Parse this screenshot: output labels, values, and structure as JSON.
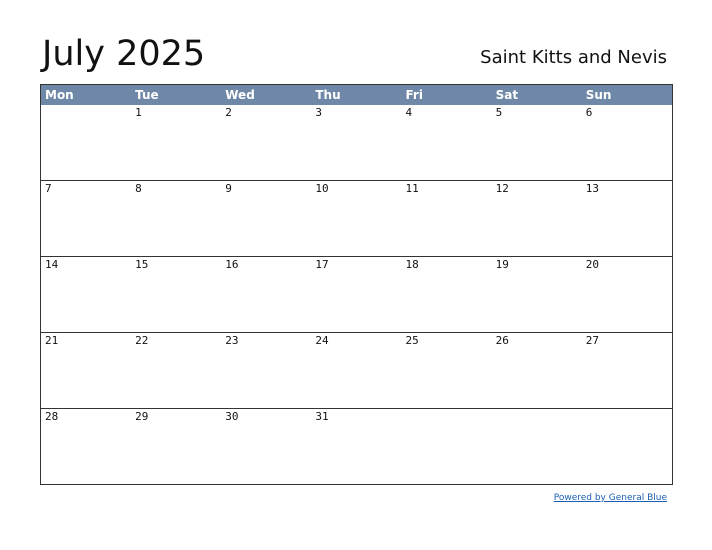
{
  "header": {
    "title": "July 2025",
    "country": "Saint Kitts and Nevis"
  },
  "calendar": {
    "day_names": [
      "Mon",
      "Tue",
      "Wed",
      "Thu",
      "Fri",
      "Sat",
      "Sun"
    ],
    "weeks": [
      [
        "",
        "1",
        "2",
        "3",
        "4",
        "5",
        "6"
      ],
      [
        "7",
        "8",
        "9",
        "10",
        "11",
        "12",
        "13"
      ],
      [
        "14",
        "15",
        "16",
        "17",
        "18",
        "19",
        "20"
      ],
      [
        "21",
        "22",
        "23",
        "24",
        "25",
        "26",
        "27"
      ],
      [
        "28",
        "29",
        "30",
        "31",
        "",
        "",
        ""
      ]
    ],
    "header_color": "#7088a8"
  },
  "footer": {
    "link_label": "Powered by General Blue"
  }
}
